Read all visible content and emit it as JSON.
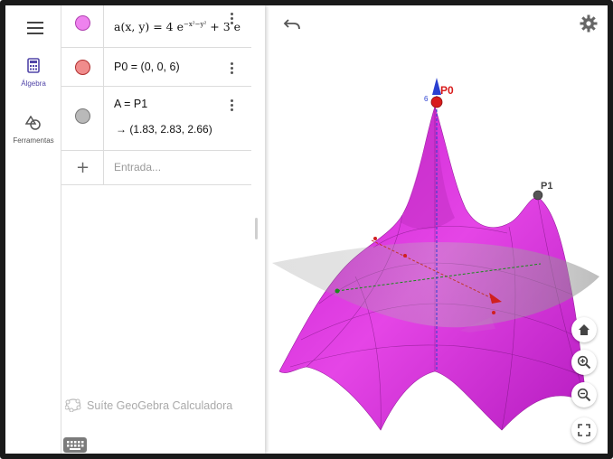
{
  "sidebar": {
    "algebra_label": "Álgebra",
    "tools_label": "Ferramentas"
  },
  "algebra": {
    "rows": [
      {
        "name": "function-a",
        "text": "a(x, y) = 4 e",
        "color": "#ee82ee"
      },
      {
        "name": "point-p0",
        "text": "P0 = (0, 0, 6)",
        "color": "#f08c8c"
      },
      {
        "name": "point-a",
        "text": "A = P1",
        "result": "→ (1.83, 2.83, 2.66)",
        "color": "#b9b9b9"
      }
    ],
    "exponent_1": "−x²−y²",
    "plus_term": "+ 3 e",
    "input_placeholder": "Entrada...",
    "brand": "Suíte GeoGebra Calculadora"
  },
  "view3d": {
    "point_p0_label": "P0",
    "point_p1_label": "P1",
    "z_tick": "6",
    "surface_color": "#e23ee0",
    "plane_color": "#9a9a9a"
  }
}
